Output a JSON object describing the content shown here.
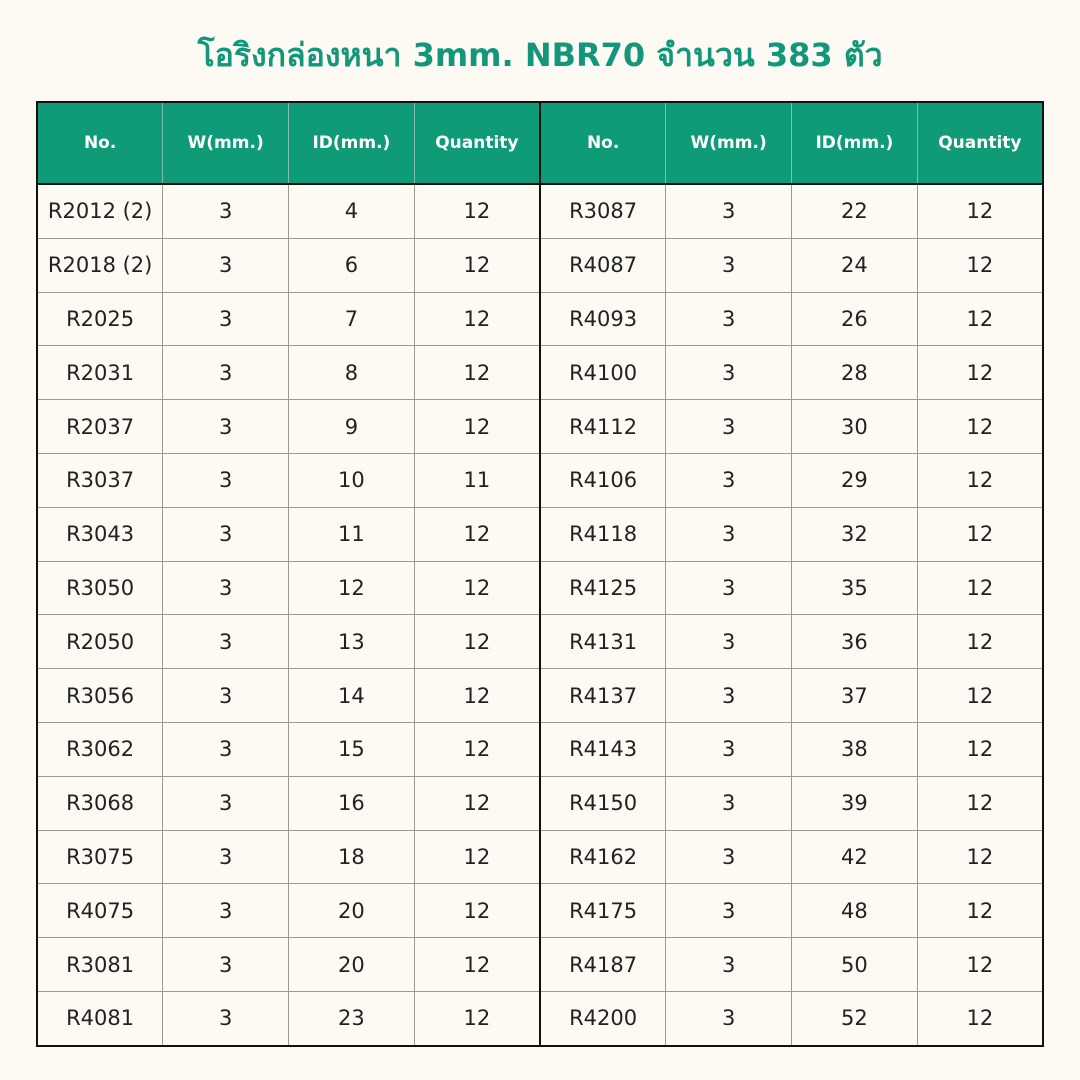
{
  "title": "โอริงกล่องหนา 3mm. NBR70 จำนวน 383 ตัว",
  "table": {
    "header": [
      "No.",
      "W(mm.)",
      "ID(mm.)",
      "Quantity",
      "No.",
      "W(mm.)",
      "ID(mm.)",
      "Quantity"
    ],
    "rows": [
      [
        "R2012 (2)",
        "3",
        "4",
        "12",
        "R3087",
        "3",
        "22",
        "12"
      ],
      [
        "R2018 (2)",
        "3",
        "6",
        "12",
        "R4087",
        "3",
        "24",
        "12"
      ],
      [
        "R2025",
        "3",
        "7",
        "12",
        "R4093",
        "3",
        "26",
        "12"
      ],
      [
        "R2031",
        "3",
        "8",
        "12",
        "R4100",
        "3",
        "28",
        "12"
      ],
      [
        "R2037",
        "3",
        "9",
        "12",
        "R4112",
        "3",
        "30",
        "12"
      ],
      [
        "R3037",
        "3",
        "10",
        "11",
        "R4106",
        "3",
        "29",
        "12"
      ],
      [
        "R3043",
        "3",
        "11",
        "12",
        "R4118",
        "3",
        "32",
        "12"
      ],
      [
        "R3050",
        "3",
        "12",
        "12",
        "R4125",
        "3",
        "35",
        "12"
      ],
      [
        "R2050",
        "3",
        "13",
        "12",
        "R4131",
        "3",
        "36",
        "12"
      ],
      [
        "R3056",
        "3",
        "14",
        "12",
        "R4137",
        "3",
        "37",
        "12"
      ],
      [
        "R3062",
        "3",
        "15",
        "12",
        "R4143",
        "3",
        "38",
        "12"
      ],
      [
        "R3068",
        "3",
        "16",
        "12",
        "R4150",
        "3",
        "39",
        "12"
      ],
      [
        "R3075",
        "3",
        "18",
        "12",
        "R4162",
        "3",
        "42",
        "12"
      ],
      [
        "R4075",
        "3",
        "20",
        "12",
        "R4175",
        "3",
        "48",
        "12"
      ],
      [
        "R3081",
        "3",
        "20",
        "12",
        "R4187",
        "3",
        "50",
        "12"
      ],
      [
        "R4081",
        "3",
        "23",
        "12",
        "R4200",
        "3",
        "52",
        "12"
      ]
    ]
  }
}
